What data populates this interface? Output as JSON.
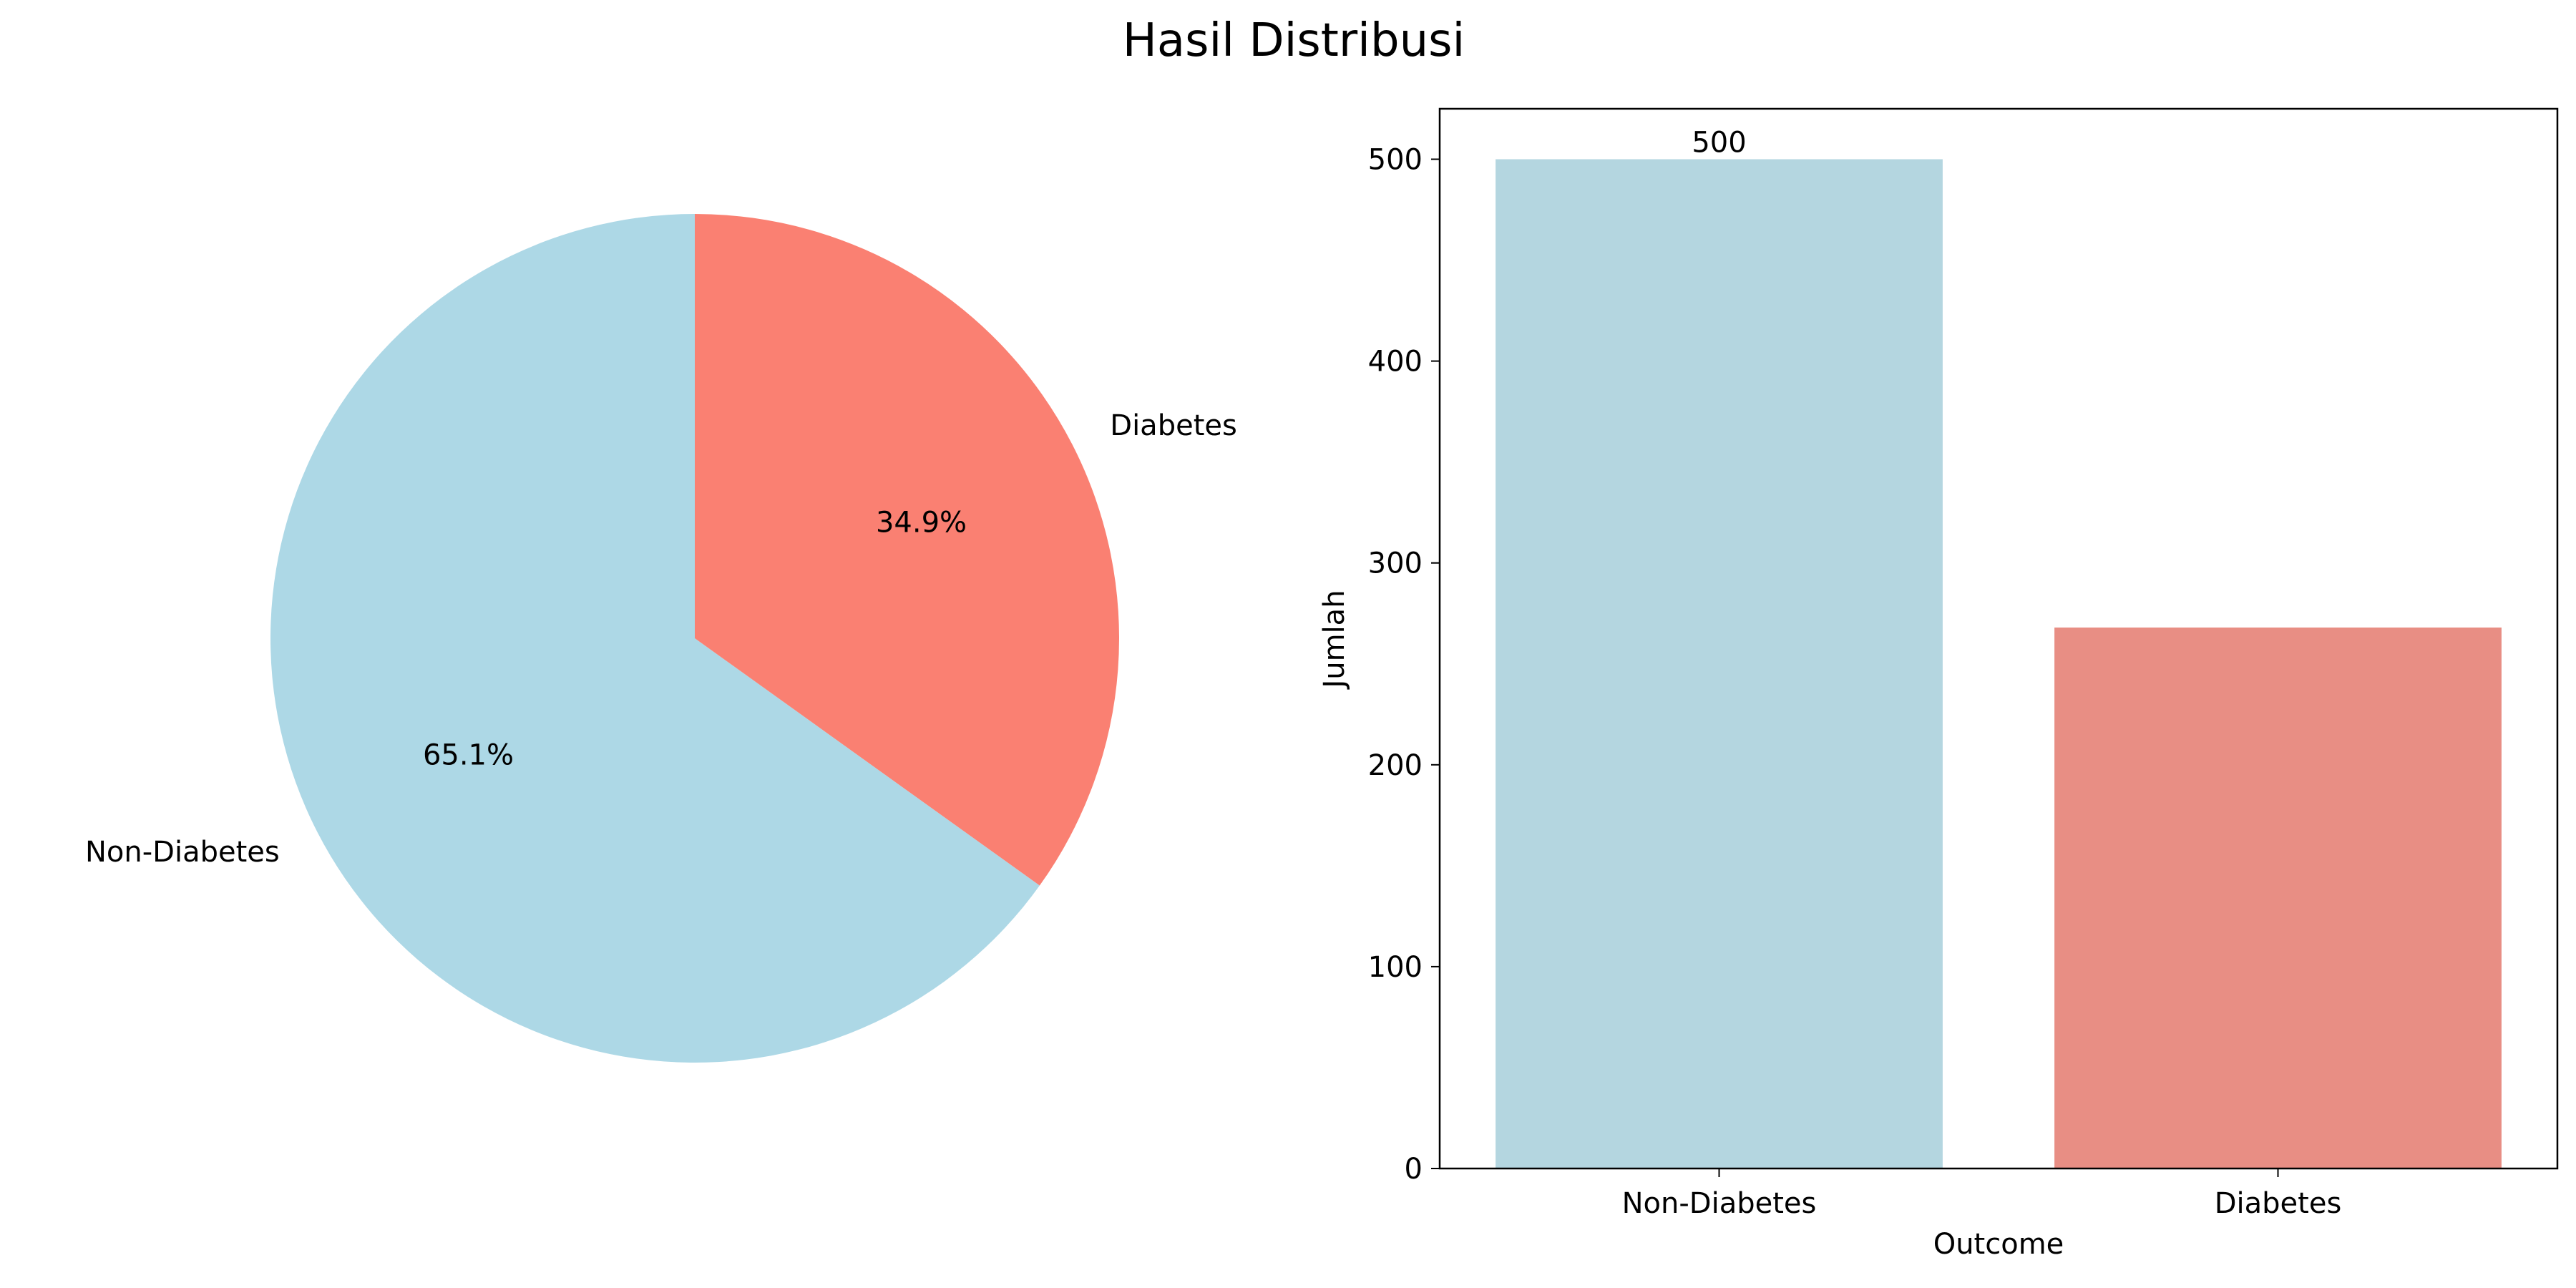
{
  "figure": {
    "title": "Hasil Distribusi"
  },
  "chart_data": [
    {
      "type": "pie",
      "categories": [
        "Non-Diabetes",
        "Diabetes"
      ],
      "values": [
        65.1,
        34.9
      ],
      "value_labels": [
        "65.1%",
        "34.9%"
      ],
      "colors": [
        "#add8e6",
        "#fa8072"
      ],
      "start_angle_deg": 90,
      "direction": "counterclockwise"
    },
    {
      "type": "bar",
      "categories": [
        "Non-Diabetes",
        "Diabetes"
      ],
      "values": [
        500,
        268
      ],
      "colors": [
        "#b4d6e0",
        "#e88e84"
      ],
      "data_labels": [
        "500",
        ""
      ],
      "xlabel": "Outcome",
      "ylabel": "Jumlah",
      "ylim": [
        0,
        525
      ],
      "yticks": [
        0,
        100,
        200,
        300,
        400,
        500
      ],
      "grid": false
    }
  ]
}
